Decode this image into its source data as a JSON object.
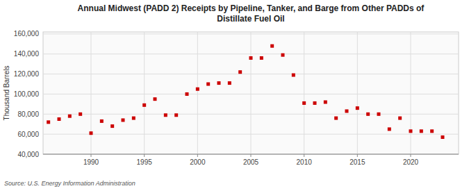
{
  "chart_data": {
    "type": "scatter",
    "title": "Annual Midwest (PADD 2) Receipts by Pipeline, Tanker, and Barge from Other PADDs of\nDistillate Fuel Oil",
    "ylabel": "Thousand Barrels",
    "source": "Source: U.S. Energy Information Administration",
    "x": [
      1986,
      1987,
      1988,
      1989,
      1990,
      1991,
      1992,
      1993,
      1994,
      1995,
      1996,
      1997,
      1998,
      1999,
      2000,
      2001,
      2002,
      2003,
      2004,
      2005,
      2006,
      2007,
      2008,
      2009,
      2010,
      2011,
      2012,
      2013,
      2014,
      2015,
      2016,
      2017,
      2018,
      2019,
      2020,
      2021,
      2022,
      2023
    ],
    "values": [
      72000,
      75000,
      78000,
      80000,
      61000,
      73000,
      68000,
      74000,
      76000,
      89000,
      95000,
      79000,
      79000,
      100000,
      105000,
      110000,
      111000,
      111000,
      122000,
      136000,
      136000,
      148000,
      139000,
      119000,
      91000,
      91000,
      92000,
      76000,
      83000,
      86000,
      80000,
      80000,
      65000,
      76000,
      63000,
      63000,
      63000,
      57000
    ],
    "color": "#cc0000",
    "marker": "square",
    "xlim": [
      1985.5,
      2024.5
    ],
    "xticks": [
      1990,
      1995,
      2000,
      2005,
      2010,
      2015,
      2020
    ],
    "ylim": [
      40000,
      162000
    ],
    "yticks": [
      {
        "value": 40000,
        "label": "40,000"
      },
      {
        "value": 60000,
        "label": "60,000"
      },
      {
        "value": 80000,
        "label": "80,000"
      },
      {
        "value": 100000,
        "label": "100,000"
      },
      {
        "value": 120000,
        "label": "120,000"
      },
      {
        "value": 140000,
        "label": "140,000"
      },
      {
        "value": 160000,
        "label": "160,000"
      }
    ],
    "grid": true
  }
}
